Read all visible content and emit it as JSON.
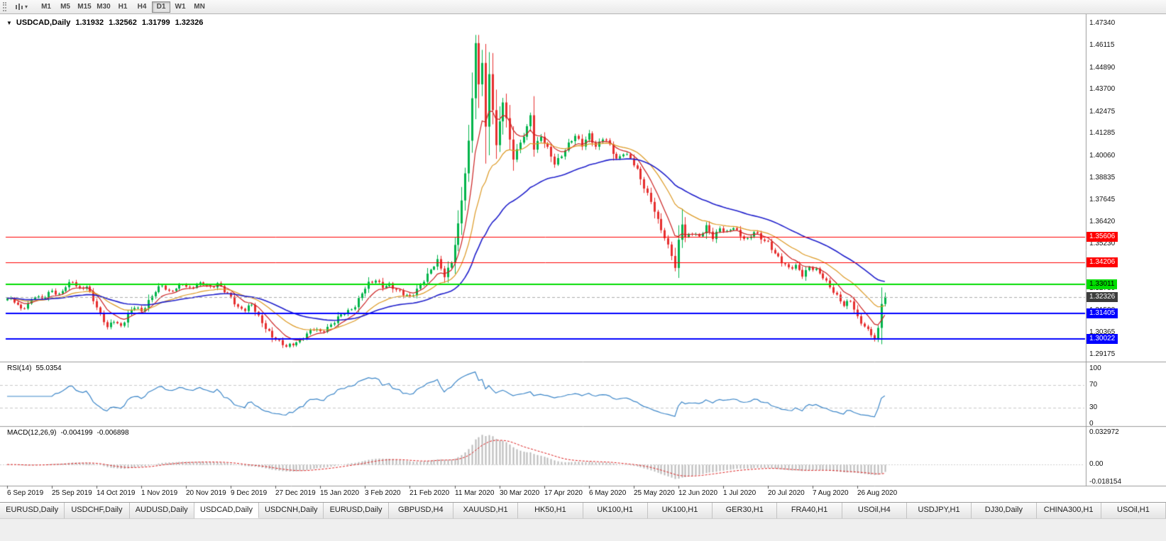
{
  "toolbar": {
    "chart_button_glyph": "▾",
    "timeframes": [
      {
        "label": "M1",
        "active": false
      },
      {
        "label": "M5",
        "active": false
      },
      {
        "label": "M15",
        "active": false
      },
      {
        "label": "M30",
        "active": false
      },
      {
        "label": "H1",
        "active": false
      },
      {
        "label": "H4",
        "active": false
      },
      {
        "label": "D1",
        "active": true
      },
      {
        "label": "W1",
        "active": false
      },
      {
        "label": "MN",
        "active": false
      }
    ]
  },
  "chart_header": {
    "menu_glyph": "▼",
    "symbol_period": "USDCAD,Daily",
    "open": "1.31932",
    "high": "1.32562",
    "low": "1.31799",
    "close": "1.32326"
  },
  "chart_data": {
    "type": "candlestick",
    "symbol": "USDCAD",
    "timeframe": "Daily",
    "candle_count": 256,
    "label_interval": 13,
    "x_labels": [
      "6 Sep 2019",
      "25 Sep 2019",
      "14 Oct 2019",
      "1 Nov 2019",
      "20 Nov 2019",
      "9 Dec 2019",
      "27 Dec 2019",
      "15 Jan 2020",
      "3 Feb 2020",
      "21 Feb 2020",
      "11 Mar 2020",
      "30 Mar 2020",
      "17 Apr 2020",
      "6 May 2020",
      "25 May 2020",
      "12 Jun 2020",
      "1 Jul 2020",
      "20 Jul 2020",
      "7 Aug 2020",
      "26 Aug 2020"
    ],
    "main": {
      "y_ticks": [
        "1.47340",
        "1.46115",
        "1.44890",
        "1.43700",
        "1.42475",
        "1.41285",
        "1.40060",
        "1.38835",
        "1.37645",
        "1.36420",
        "1.35230",
        "1.34005",
        "1.32780",
        "1.31590",
        "1.30365",
        "1.29175"
      ],
      "y_max": 1.4775,
      "y_min": 1.2885,
      "max_high": 1.4669,
      "min_low": 1.2952,
      "up_color": "#00b44a",
      "down_color": "#e62e2e",
      "close_anchors": [
        [
          0,
          1.3225
        ],
        [
          2,
          1.3205
        ],
        [
          4,
          1.3162
        ],
        [
          6,
          1.3196
        ],
        [
          8,
          1.324
        ],
        [
          10,
          1.3216
        ],
        [
          13,
          1.3266
        ],
        [
          15,
          1.3246
        ],
        [
          17,
          1.3292
        ],
        [
          19,
          1.3312
        ],
        [
          21,
          1.3272
        ],
        [
          23,
          1.3296
        ],
        [
          25,
          1.3218
        ],
        [
          27,
          1.3132
        ],
        [
          29,
          1.3062
        ],
        [
          31,
          1.3106
        ],
        [
          33,
          1.3072
        ],
        [
          35,
          1.3132
        ],
        [
          37,
          1.3176
        ],
        [
          39,
          1.3152
        ],
        [
          41,
          1.3212
        ],
        [
          43,
          1.3266
        ],
        [
          45,
          1.3292
        ],
        [
          47,
          1.3256
        ],
        [
          49,
          1.3286
        ],
        [
          51,
          1.3306
        ],
        [
          53,
          1.3272
        ],
        [
          55,
          1.3296
        ],
        [
          57,
          1.3312
        ],
        [
          59,
          1.3286
        ],
        [
          61,
          1.3302
        ],
        [
          63,
          1.3262
        ],
        [
          65,
          1.3232
        ],
        [
          67,
          1.3176
        ],
        [
          69,
          1.3162
        ],
        [
          71,
          1.3186
        ],
        [
          73,
          1.3122
        ],
        [
          75,
          1.3066
        ],
        [
          77,
          1.3016
        ],
        [
          79,
          1.2982
        ],
        [
          81,
          1.2958
        ],
        [
          83,
          1.2978
        ],
        [
          85,
          1.2996
        ],
        [
          87,
          1.3026
        ],
        [
          89,
          1.3056
        ],
        [
          91,
          1.3042
        ],
        [
          93,
          1.3066
        ],
        [
          95,
          1.3096
        ],
        [
          97,
          1.3132
        ],
        [
          99,
          1.3152
        ],
        [
          101,
          1.3186
        ],
        [
          103,
          1.3256
        ],
        [
          105,
          1.3302
        ],
        [
          107,
          1.3322
        ],
        [
          109,
          1.3292
        ],
        [
          111,
          1.3302
        ],
        [
          113,
          1.3266
        ],
        [
          115,
          1.3246
        ],
        [
          117,
          1.3232
        ],
        [
          119,
          1.3276
        ],
        [
          121,
          1.3322
        ],
        [
          123,
          1.3376
        ],
        [
          125,
          1.3432
        ],
        [
          127,
          1.3352
        ],
        [
          129,
          1.3422
        ],
        [
          130,
          1.352
        ],
        [
          131,
          1.3622
        ],
        [
          132,
          1.3762
        ],
        [
          133,
          1.3912
        ],
        [
          134,
          1.4082
        ],
        [
          135,
          1.4332
        ],
        [
          136,
          1.463
        ],
        [
          137,
          1.4392
        ],
        [
          138,
          1.4522
        ],
        [
          139,
          1.4162
        ],
        [
          140,
          1.4442
        ],
        [
          141,
          1.4262
        ],
        [
          142,
          1.4062
        ],
        [
          143,
          1.4192
        ],
        [
          144,
          1.4312
        ],
        [
          145,
          1.4212
        ],
        [
          146,
          1.4092
        ],
        [
          147,
          1.3992
        ],
        [
          149,
          1.4072
        ],
        [
          151,
          1.4162
        ],
        [
          152,
          1.4232
        ],
        [
          153,
          1.4052
        ],
        [
          155,
          1.4112
        ],
        [
          157,
          1.4042
        ],
        [
          159,
          1.3962
        ],
        [
          161,
          1.4012
        ],
        [
          163,
          1.4072
        ],
        [
          165,
          1.4112
        ],
        [
          167,
          1.4062
        ],
        [
          169,
          1.4126
        ],
        [
          171,
          1.4056
        ],
        [
          173,
          1.4102
        ],
        [
          175,
          1.4062
        ],
        [
          177,
          1.3986
        ],
        [
          179,
          1.4026
        ],
        [
          181,
          1.3992
        ],
        [
          183,
          1.3922
        ],
        [
          185,
          1.3832
        ],
        [
          187,
          1.3762
        ],
        [
          189,
          1.3652
        ],
        [
          191,
          1.3552
        ],
        [
          193,
          1.3462
        ],
        [
          194,
          1.3392
        ],
        [
          195,
          1.3542
        ],
        [
          196,
          1.3642
        ],
        [
          197,
          1.3562
        ],
        [
          199,
          1.3582
        ],
        [
          201,
          1.3556
        ],
        [
          203,
          1.3622
        ],
        [
          205,
          1.3562
        ],
        [
          207,
          1.3606
        ],
        [
          209,
          1.3582
        ],
        [
          211,
          1.3616
        ],
        [
          213,
          1.3572
        ],
        [
          215,
          1.3546
        ],
        [
          217,
          1.3586
        ],
        [
          219,
          1.3552
        ],
        [
          221,
          1.3532
        ],
        [
          223,
          1.3472
        ],
        [
          225,
          1.3422
        ],
        [
          227,
          1.3386
        ],
        [
          229,
          1.3406
        ],
        [
          231,
          1.3356
        ],
        [
          233,
          1.3392
        ],
        [
          235,
          1.3376
        ],
        [
          237,
          1.3342
        ],
        [
          239,
          1.3292
        ],
        [
          241,
          1.3236
        ],
        [
          243,
          1.3182
        ],
        [
          245,
          1.3212
        ],
        [
          247,
          1.3122
        ],
        [
          249,
          1.3072
        ],
        [
          251,
          1.3022
        ],
        [
          252,
          1.2998
        ],
        [
          253,
          1.3062
        ],
        [
          254,
          1.31932
        ],
        [
          255,
          1.32326
        ]
      ],
      "wick_overrides": [
        [
          196,
          1.3715
        ]
      ],
      "last_candle": {
        "open": 1.31932,
        "high": 1.32562,
        "low": 1.31799,
        "close": 1.32326
      },
      "ma_lines": [
        {
          "name": "fast-ma",
          "period": 8,
          "color": "#cc2222"
        },
        {
          "name": "medium-ma",
          "period": 20,
          "color": "#dd9922"
        },
        {
          "name": "slow-ma",
          "period": 45,
          "color": "#2020cc"
        }
      ],
      "h_lines": [
        {
          "price": 1.35606,
          "label": "1.35606",
          "color": "#ff0000",
          "width": 1,
          "box_text": "#ffffff"
        },
        {
          "price": 1.34206,
          "label": "1.34206",
          "color": "#ff0000",
          "width": 1,
          "box_text": "#ffffff"
        },
        {
          "price": 1.33011,
          "label": "1.33011",
          "color": "#00dd00",
          "width": 2,
          "box_text": "#000000"
        },
        {
          "price": 1.31405,
          "label": "1.31405",
          "color": "#0000ff",
          "width": 2,
          "box_text": "#ffffff"
        },
        {
          "price": 1.30022,
          "label": "1.30022",
          "color": "#0000ff",
          "width": 2,
          "box_text": "#ffffff"
        }
      ],
      "current_price": {
        "value": 1.32326,
        "label": "1.32326",
        "box_color": "#3d3d3d",
        "box_text": "#ffffff",
        "line_color": "#aaaaaa"
      }
    },
    "rsi": {
      "name": "RSI(14)",
      "value": "55.0354",
      "period": 14,
      "y_ticks": [
        "100",
        "70",
        "30",
        "0"
      ],
      "dash_levels": [
        70,
        30
      ],
      "color": "#3d87c9"
    },
    "macd": {
      "name": "MACD(12,26,9)",
      "main_value": "-0.004199",
      "signal_value": "-0.006898",
      "fast": 12,
      "slow": 26,
      "signal": 9,
      "y_ticks": [
        "0.032972",
        "0.00",
        "-0.018154"
      ],
      "y_max": 0.032972,
      "y_min": -0.018154,
      "bar_color": "#b9b9b9",
      "signal_color": "#dd2222"
    }
  },
  "tabbar": {
    "tabs": [
      {
        "label": "EURUSD,Daily",
        "active": false
      },
      {
        "label": "USDCHF,Daily",
        "active": false
      },
      {
        "label": "AUDUSD,Daily",
        "active": false
      },
      {
        "label": "USDCAD,Daily",
        "active": true
      },
      {
        "label": "USDCNH,Daily",
        "active": false
      },
      {
        "label": "EURUSD,Daily",
        "active": false
      },
      {
        "label": "GBPUSD,H4",
        "active": false
      },
      {
        "label": "XAUUSD,H1",
        "active": false
      },
      {
        "label": "HK50,H1",
        "active": false
      },
      {
        "label": "UK100,H1",
        "active": false
      },
      {
        "label": "UK100,H1",
        "active": false
      },
      {
        "label": "GER30,H1",
        "active": false
      },
      {
        "label": "FRA40,H1",
        "active": false
      },
      {
        "label": "USOil,H4",
        "active": false
      },
      {
        "label": "USDJPY,H1",
        "active": false
      },
      {
        "label": "DJ30,Daily",
        "active": false
      },
      {
        "label": "CHINA300,H1",
        "active": false
      },
      {
        "label": "USOil,H1",
        "active": false
      }
    ]
  }
}
